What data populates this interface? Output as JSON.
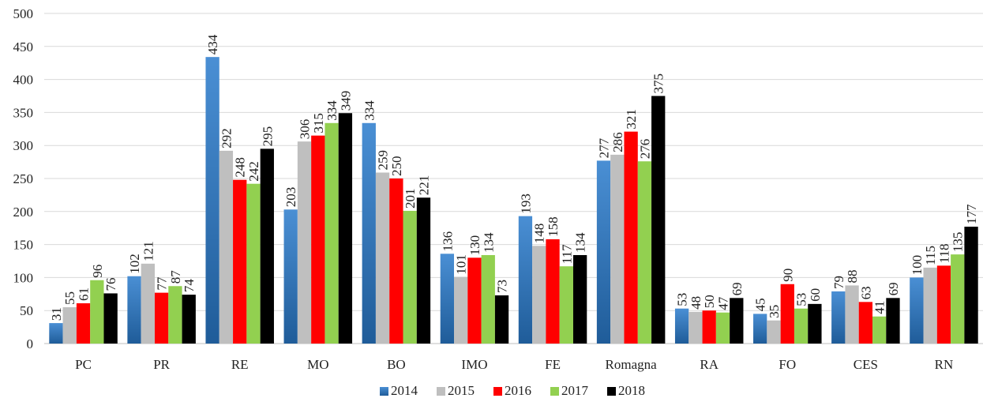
{
  "chart_data": {
    "type": "bar",
    "title": "",
    "xlabel": "",
    "ylabel": "",
    "ylim": [
      0,
      500
    ],
    "yticks": [
      0,
      50,
      100,
      150,
      200,
      250,
      300,
      350,
      400,
      450,
      500
    ],
    "grid": true,
    "legend_position": "bottom",
    "categories": [
      "PC",
      "PR",
      "RE",
      "MO",
      "BO",
      "IMO",
      "FE",
      "Romagna",
      "RA",
      "FO",
      "CES",
      "RN"
    ],
    "series": [
      {
        "name": "2014",
        "color": "#2e75b6",
        "values": [
          31,
          102,
          434,
          203,
          334,
          136,
          193,
          277,
          53,
          45,
          79,
          100
        ]
      },
      {
        "name": "2015",
        "color": "#bfbfbf",
        "values": [
          55,
          121,
          292,
          306,
          259,
          101,
          148,
          286,
          48,
          35,
          88,
          115
        ]
      },
      {
        "name": "2016",
        "color": "#ff0000",
        "values": [
          61,
          77,
          248,
          315,
          250,
          130,
          158,
          321,
          50,
          90,
          63,
          118
        ]
      },
      {
        "name": "2017",
        "color": "#92d050",
        "values": [
          96,
          87,
          242,
          334,
          201,
          134,
          117,
          276,
          47,
          53,
          41,
          135
        ]
      },
      {
        "name": "2018",
        "color": "#000000",
        "values": [
          76,
          74,
          295,
          349,
          221,
          73,
          134,
          375,
          69,
          60,
          69,
          177
        ]
      }
    ]
  }
}
